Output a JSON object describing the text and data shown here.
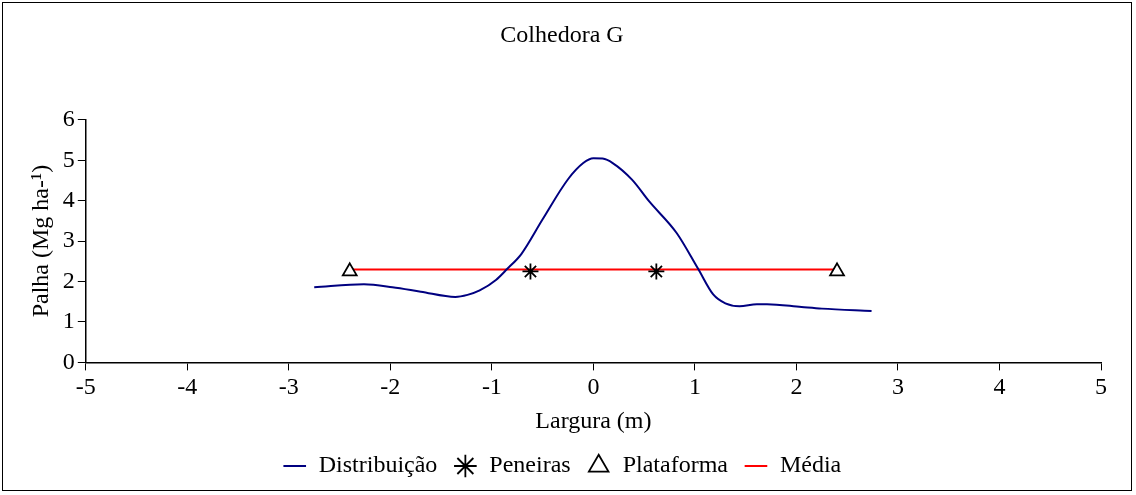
{
  "chart_data": {
    "type": "line",
    "title": "Colhedora G",
    "xlabel": "Largura (m)",
    "ylabel": "Palha (Mg ha-¹)",
    "xlim": [
      -5,
      5
    ],
    "xticks": [
      -5,
      -4,
      -3,
      -2,
      -1,
      0,
      1,
      2,
      3,
      4,
      5
    ],
    "ylim": [
      0,
      6
    ],
    "yticks": [
      0,
      1,
      2,
      3,
      4,
      5,
      6
    ],
    "grid": false,
    "legend": "bottom",
    "line_style": "solid",
    "series": [
      {
        "name": "Distribuição",
        "marker": "none",
        "color": "#000080",
        "x": [
          -2.75,
          -2.26,
          -1.98,
          -1.7,
          -1.36,
          -1.24,
          -1.12,
          -0.96,
          -0.85,
          -0.71,
          -0.5,
          -0.25,
          -0.1,
          0,
          0.09,
          0.19,
          0.38,
          0.55,
          0.82,
          1.03,
          1.18,
          1.3,
          1.44,
          1.61,
          1.71,
          2.05,
          2.25,
          2.74
        ],
        "values": [
          1.86,
          1.93,
          1.86,
          1.75,
          1.62,
          1.67,
          1.78,
          2.04,
          2.31,
          2.68,
          3.54,
          4.53,
          4.93,
          5.05,
          5.04,
          4.93,
          4.52,
          3.98,
          3.2,
          2.32,
          1.68,
          1.46,
          1.39,
          1.44,
          1.44,
          1.37,
          1.33,
          1.27
        ]
      },
      {
        "name": "Peneiras",
        "type": "scatter",
        "marker": "cross",
        "color": "#000000",
        "x": [
          -0.62,
          0.62
        ],
        "values": [
          2.25,
          2.25
        ]
      },
      {
        "name": "Plataforma",
        "type": "scatter",
        "marker": "triangle",
        "color": "#000000",
        "x": [
          -2.4,
          2.4
        ],
        "values": [
          2.25,
          2.25
        ]
      },
      {
        "name": "Média",
        "marker": "none",
        "color": "#ff0000",
        "x": [
          -2.4,
          2.4
        ],
        "values": [
          2.3,
          2.3
        ]
      }
    ]
  }
}
